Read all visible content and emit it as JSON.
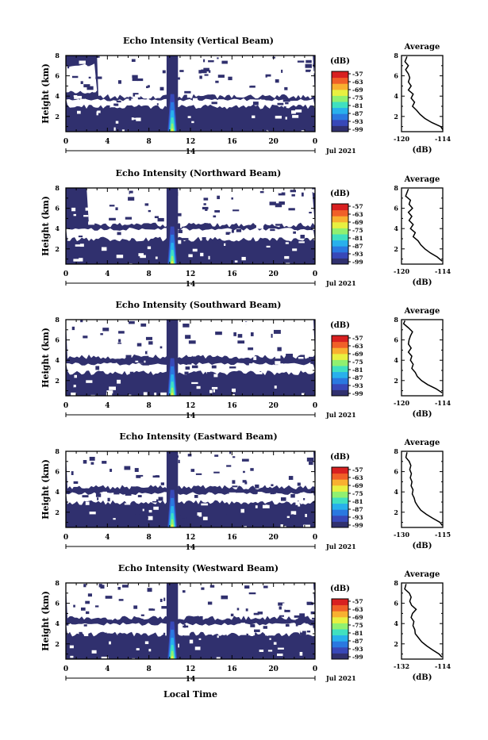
{
  "chart_data": {
    "type": "heatmap",
    "shared": {
      "x_ticks": [
        "0",
        "4",
        "8",
        "12",
        "16",
        "20",
        "0"
      ],
      "x_range_hours": [
        0,
        24
      ],
      "day_label": "14",
      "date_label": "Jul 2021",
      "xlabel": "Local Time",
      "ylabel": "Height (km)",
      "y_ticks": [
        "8",
        "6",
        "4",
        "2"
      ],
      "y_range_km": [
        0.5,
        8
      ],
      "colorbar_title": "(dB)",
      "colorbar_ticks": [
        "-57",
        "-63",
        "-69",
        "-75",
        "-81",
        "-87",
        "-93",
        "-99"
      ],
      "colorbar_range_db": [
        -99,
        -57
      ],
      "colors": [
        "#30306e",
        "#3848b8",
        "#2a78e0",
        "#28b0ec",
        "#40e0c0",
        "#90f070",
        "#e8f040",
        "#f8b030",
        "#f06028",
        "#d82020"
      ],
      "average_title": "Average",
      "average_xlabel": "(dB)",
      "average_y_ticks": [
        "8",
        "6",
        "4",
        "2"
      ]
    },
    "panels": [
      {
        "title": "Echo Intensity (Vertical Beam)",
        "average_x_ticks": [
          "-120",
          "-114"
        ],
        "average_xlim": [
          -120,
          -114
        ],
        "average_profile": [
          [
            7.9,
            -119.2
          ],
          [
            7.4,
            -119.5
          ],
          [
            7.0,
            -119.0
          ],
          [
            6.6,
            -119.4
          ],
          [
            6.2,
            -119.0
          ],
          [
            5.8,
            -118.8
          ],
          [
            5.4,
            -119.0
          ],
          [
            5.0,
            -118.6
          ],
          [
            4.6,
            -119.0
          ],
          [
            4.2,
            -118.3
          ],
          [
            3.8,
            -118.6
          ],
          [
            3.4,
            -118.1
          ],
          [
            3.0,
            -118.4
          ],
          [
            2.6,
            -117.8
          ],
          [
            2.2,
            -117.3
          ],
          [
            1.8,
            -116.6
          ],
          [
            1.4,
            -115.6
          ],
          [
            1.0,
            -114.3
          ],
          [
            0.7,
            -114.0
          ]
        ],
        "white_regions": [
          {
            "t0": 3.0,
            "t1": 24.0,
            "z0": 4.0,
            "z1": 8.0
          },
          {
            "t0": 0.0,
            "t1": 3.0,
            "z0": 4.4,
            "z1": 7.2
          },
          {
            "t0": 0.0,
            "t1": 24.0,
            "z0": 3.0,
            "z1": 3.8
          }
        ]
      },
      {
        "title": "Echo Intensity (Northward Beam)",
        "average_x_ticks": [
          "-120",
          "-114"
        ],
        "average_xlim": [
          -120,
          -114
        ],
        "average_profile": [
          [
            7.9,
            -119.0
          ],
          [
            7.2,
            -119.4
          ],
          [
            6.8,
            -118.7
          ],
          [
            6.4,
            -118.9
          ],
          [
            6.0,
            -118.4
          ],
          [
            5.6,
            -119.0
          ],
          [
            5.2,
            -118.5
          ],
          [
            4.8,
            -118.9
          ],
          [
            4.4,
            -118.3
          ],
          [
            4.0,
            -118.7
          ],
          [
            3.6,
            -118.0
          ],
          [
            3.2,
            -118.3
          ],
          [
            2.8,
            -117.6
          ],
          [
            2.4,
            -117.2
          ],
          [
            2.0,
            -116.6
          ],
          [
            1.6,
            -115.8
          ],
          [
            1.2,
            -114.8
          ],
          [
            0.8,
            -114.1
          ]
        ],
        "white_regions": [
          {
            "t0": 2.0,
            "t1": 24.0,
            "z0": 4.4,
            "z1": 8.0
          },
          {
            "t0": 0.0,
            "t1": 24.0,
            "z0": 3.0,
            "z1": 4.1
          }
        ]
      },
      {
        "title": "Echo Intensity (Southward Beam)",
        "average_x_ticks": [
          "-120",
          "-114"
        ],
        "average_xlim": [
          -120,
          -114
        ],
        "average_profile": [
          [
            7.9,
            -119.5
          ],
          [
            7.6,
            -119.7
          ],
          [
            7.2,
            -119.0
          ],
          [
            6.8,
            -118.4
          ],
          [
            6.4,
            -118.7
          ],
          [
            6.0,
            -118.9
          ],
          [
            5.6,
            -119.0
          ],
          [
            5.2,
            -118.6
          ],
          [
            4.8,
            -119.0
          ],
          [
            4.4,
            -118.5
          ],
          [
            4.0,
            -118.7
          ],
          [
            3.6,
            -118.3
          ],
          [
            3.2,
            -118.5
          ],
          [
            2.8,
            -118.0
          ],
          [
            2.4,
            -117.7
          ],
          [
            2.0,
            -117.1
          ],
          [
            1.6,
            -116.2
          ],
          [
            1.2,
            -115.0
          ],
          [
            0.8,
            -114.1
          ]
        ],
        "white_regions": [
          {
            "t0": 0.0,
            "t1": 24.0,
            "z0": 4.4,
            "z1": 8.0
          },
          {
            "t0": 0.0,
            "t1": 24.0,
            "z0": 2.8,
            "z1": 3.8
          }
        ]
      },
      {
        "title": "Echo Intensity (Eastward Beam)",
        "average_x_ticks": [
          "-130",
          "-115"
        ],
        "average_xlim": [
          -130,
          -115
        ],
        "average_profile": [
          [
            7.9,
            -128.0
          ],
          [
            7.4,
            -128.4
          ],
          [
            7.0,
            -127.2
          ],
          [
            6.6,
            -126.6
          ],
          [
            6.2,
            -127.0
          ],
          [
            5.8,
            -126.4
          ],
          [
            5.4,
            -126.8
          ],
          [
            5.0,
            -126.2
          ],
          [
            4.6,
            -126.5
          ],
          [
            4.2,
            -125.8
          ],
          [
            3.8,
            -126.1
          ],
          [
            3.4,
            -125.4
          ],
          [
            3.0,
            -125.0
          ],
          [
            2.6,
            -124.1
          ],
          [
            2.2,
            -123.0
          ],
          [
            1.8,
            -121.0
          ],
          [
            1.4,
            -118.6
          ],
          [
            1.0,
            -116.0
          ],
          [
            0.7,
            -115.2
          ]
        ],
        "white_regions": [
          {
            "t0": 0.0,
            "t1": 24.0,
            "z0": 4.5,
            "z1": 8.0
          },
          {
            "t0": 0.0,
            "t1": 24.0,
            "z0": 3.0,
            "z1": 4.0
          }
        ]
      },
      {
        "title": "Echo Intensity (Westward Beam)",
        "average_x_ticks": [
          "-132",
          "-114"
        ],
        "average_xlim": [
          -132,
          -114
        ],
        "average_profile": [
          [
            7.9,
            -130.0
          ],
          [
            7.4,
            -130.6
          ],
          [
            7.0,
            -128.6
          ],
          [
            6.6,
            -127.8
          ],
          [
            6.2,
            -128.4
          ],
          [
            5.8,
            -127.6
          ],
          [
            5.4,
            -125.6
          ],
          [
            5.0,
            -127.2
          ],
          [
            4.6,
            -127.8
          ],
          [
            4.2,
            -126.6
          ],
          [
            3.8,
            -127.0
          ],
          [
            3.4,
            -126.2
          ],
          [
            3.0,
            -126.0
          ],
          [
            2.6,
            -124.6
          ],
          [
            2.2,
            -123.2
          ],
          [
            1.8,
            -121.0
          ],
          [
            1.4,
            -118.4
          ],
          [
            1.0,
            -115.6
          ],
          [
            0.7,
            -114.4
          ]
        ],
        "white_regions": [
          {
            "t0": 0.0,
            "t1": 24.0,
            "z0": 4.6,
            "z1": 8.0
          },
          {
            "t0": 0.0,
            "t1": 24.0,
            "z0": 3.0,
            "z1": 4.1
          }
        ]
      }
    ]
  }
}
